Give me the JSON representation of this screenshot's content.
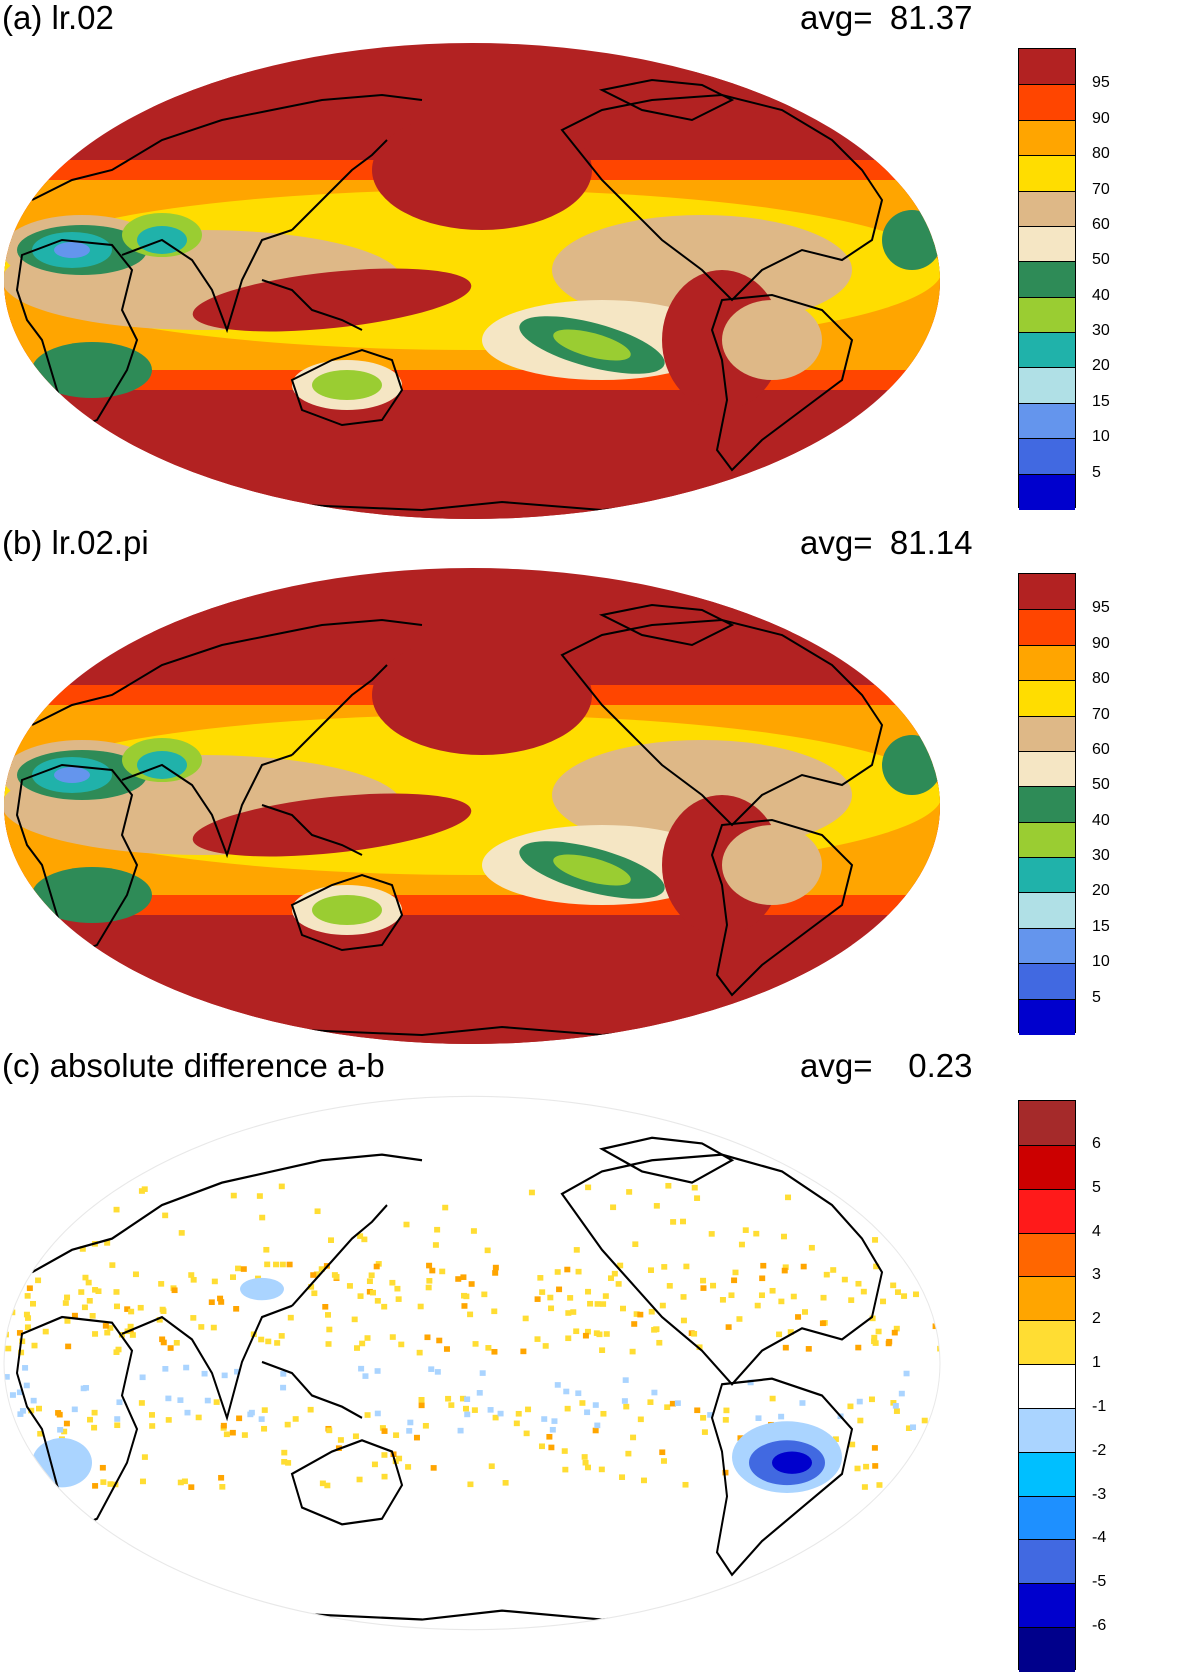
{
  "panels": [
    {
      "id": "a",
      "title": "(a) lr.02",
      "avg_label": "avg=",
      "avg_value": "81.37",
      "colorbar": {
        "labels": [
          "95",
          "90",
          "80",
          "70",
          "60",
          "50",
          "40",
          "30",
          "20",
          "15",
          "10",
          "5"
        ],
        "colors": [
          "#b22222",
          "#ff4500",
          "#ffa500",
          "#ffdd00",
          "#deb887",
          "#f5e6c4",
          "#2e8b57",
          "#9acd32",
          "#20b2aa",
          "#b0e0e6",
          "#6495ed",
          "#4169e1",
          "#0000cd"
        ]
      }
    },
    {
      "id": "b",
      "title": "(b) lr.02.pi",
      "avg_label": "avg=",
      "avg_value": "81.14",
      "colorbar": {
        "labels": [
          "95",
          "90",
          "80",
          "70",
          "60",
          "50",
          "40",
          "30",
          "20",
          "15",
          "10",
          "5"
        ],
        "colors": [
          "#b22222",
          "#ff4500",
          "#ffa500",
          "#ffdd00",
          "#deb887",
          "#f5e6c4",
          "#2e8b57",
          "#9acd32",
          "#20b2aa",
          "#b0e0e6",
          "#6495ed",
          "#4169e1",
          "#0000cd"
        ]
      }
    },
    {
      "id": "c",
      "title": "(c) absolute difference a-b",
      "avg_label": "avg=",
      "avg_value": "0.23",
      "colorbar": {
        "labels": [
          "6",
          "5",
          "4",
          "3",
          "2",
          "1",
          "-1",
          "-2",
          "-3",
          "-4",
          "-5",
          "-6"
        ],
        "colors": [
          "#a52a2a",
          "#cc0000",
          "#ff1a1a",
          "#ff6600",
          "#ffa500",
          "#ffdd33",
          "#ffffff",
          "#aad4ff",
          "#00bfff",
          "#1e90ff",
          "#4169e1",
          "#0000cd",
          "#00008b"
        ]
      }
    }
  ]
}
